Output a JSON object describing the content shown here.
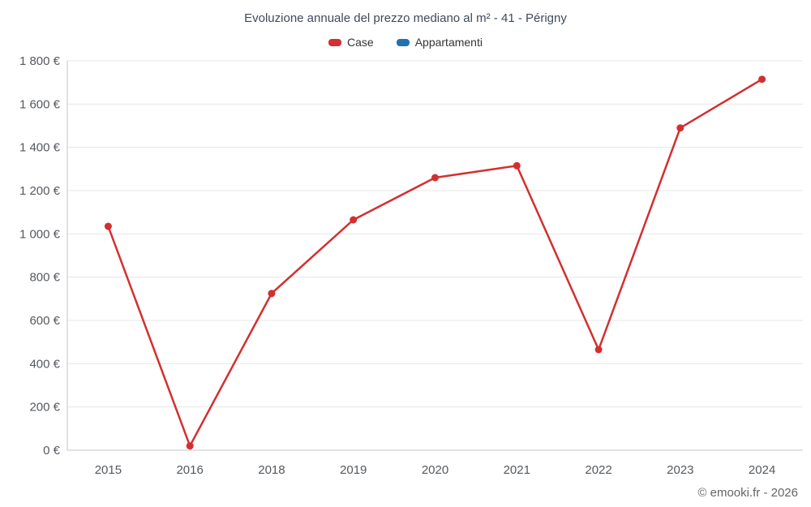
{
  "header": {
    "title": "Evoluzione annuale del prezzo mediano al m² - 41 - Périgny"
  },
  "footer": {
    "credit": "© emooki.fr - 2026"
  },
  "chart_data": {
    "type": "line",
    "title": "Evoluzione annuale del prezzo mediano al m² - 41 - Périgny",
    "categories": [
      "2015",
      "2016",
      "2018",
      "2019",
      "2020",
      "2021",
      "2022",
      "2023",
      "2024"
    ],
    "series": [
      {
        "name": "Case",
        "color": "#d32f2f",
        "values": [
          1035,
          20,
          725,
          1065,
          1260,
          1315,
          465,
          1490,
          1715
        ]
      },
      {
        "name": "Appartamenti",
        "color": "#2271b3",
        "values": []
      }
    ],
    "xlabel": "",
    "ylabel": "",
    "ylim": [
      0,
      1800
    ],
    "ytick_step": 200,
    "ytick_labels": [
      "0 €",
      "200 €",
      "400 €",
      "600 €",
      "800 €",
      "1 000 €",
      "1 200 €",
      "1 400 €",
      "1 600 €",
      "1 800 €"
    ],
    "grid": true,
    "legend_position": "top",
    "gridline_color": "#e7e7e7",
    "axis_line_color": "#c6c6c6",
    "footer": "© emooki.fr - 2026"
  }
}
